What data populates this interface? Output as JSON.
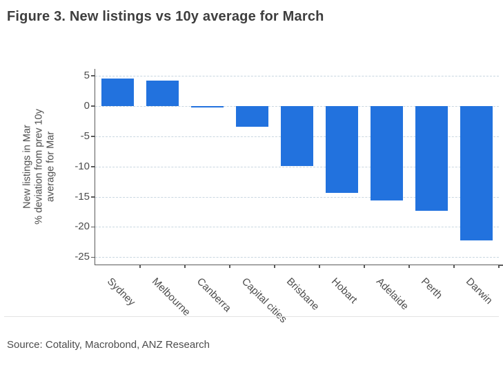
{
  "title": "Figure 3. New listings vs 10y average for March",
  "source": "Source: Cotality, Macrobond, ANZ Research",
  "chart_data": {
    "type": "bar",
    "categories": [
      "Sydney",
      "Melbourne",
      "Canberra",
      "Capital cities",
      "Brisbane",
      "Hobart",
      "Adelaide",
      "Perth",
      "Darwin"
    ],
    "values": [
      4.5,
      4.2,
      -0.3,
      -3.4,
      -9.9,
      -14.4,
      -15.6,
      -17.3,
      -22.2
    ],
    "title": "Figure 3. New listings vs 10y average for March",
    "xlabel": "",
    "ylabel_lines": [
      "New listings in Mar",
      "% deviation from prev 10y",
      "average for Mar"
    ],
    "yticks": [
      5,
      0,
      -5,
      -10,
      -15,
      -20,
      -25
    ],
    "ylim": [
      -26.2,
      6.1
    ],
    "grid": true,
    "legend": "none",
    "bar_color": "#2272DE",
    "gridline_color": "#c8d6e0",
    "axis_color": "#595959",
    "x_label_rotation_deg": 45
  }
}
